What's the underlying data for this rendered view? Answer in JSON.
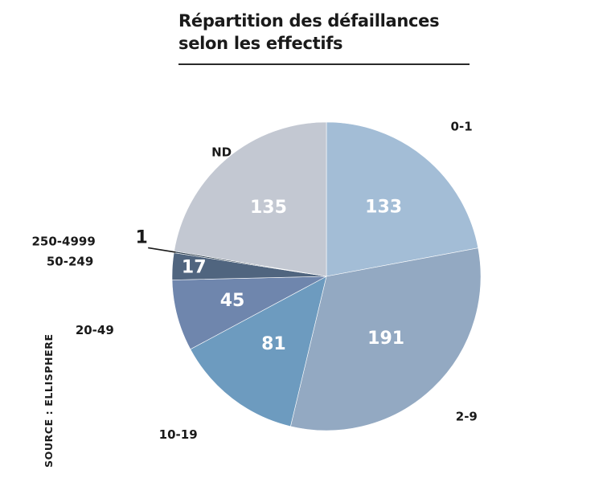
{
  "chart_data": {
    "type": "pie",
    "title_lines": [
      "Répartition des défaillances",
      "selon les effectifs"
    ],
    "source": "SOURCE : ELLISPHERE",
    "start_angle_deg": 0,
    "direction": "clockwise",
    "slices": [
      {
        "category": "0-1",
        "value": 133,
        "value_label": "133",
        "color": "#a3bdd6"
      },
      {
        "category": "2-9",
        "value": 191,
        "value_label": "191",
        "color": "#93a9c2"
      },
      {
        "category": "10-19",
        "value": 81,
        "value_label": "81",
        "color": "#6d9bbf"
      },
      {
        "category": "20-49",
        "value": 45,
        "value_label": "45",
        "color": "#6f86ad"
      },
      {
        "category": "50-249",
        "value": 17,
        "value_label": "17",
        "color": "#50657f"
      },
      {
        "category": "250-4999",
        "value": 1,
        "value_label": "1",
        "color": "#2c3f4f"
      },
      {
        "category": "ND",
        "value": 135,
        "value_label": "135",
        "color": "#c3c8d2"
      }
    ]
  }
}
